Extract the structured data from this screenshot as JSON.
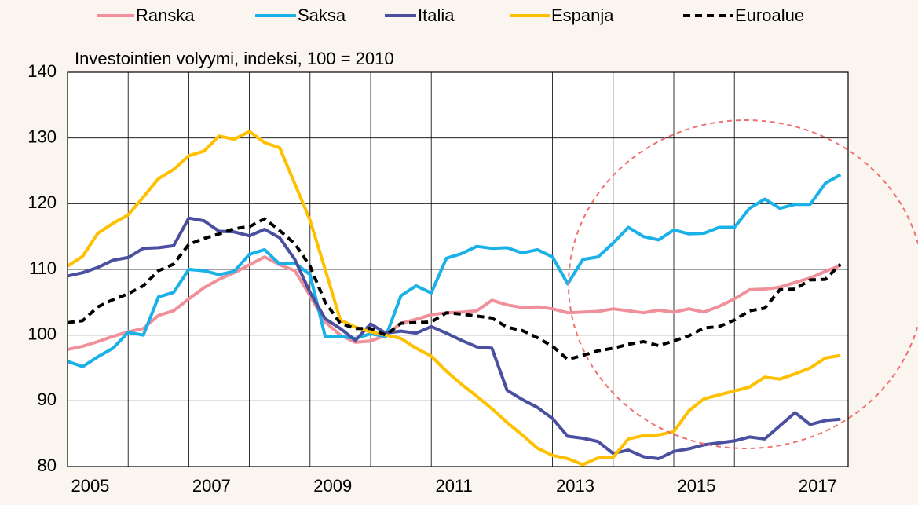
{
  "chart_data": {
    "type": "line",
    "subtitle": "Investointien volyymi, indeksi, 100 = 2010",
    "categories": [
      null,
      "2005",
      null,
      null,
      null,
      null,
      null,
      null,
      null,
      "2007",
      null,
      null,
      null,
      null,
      null,
      null,
      null,
      "2009",
      null,
      null,
      null,
      null,
      null,
      null,
      null,
      "2011",
      null,
      null,
      null,
      null,
      null,
      null,
      null,
      "2013",
      null,
      null,
      null,
      null,
      null,
      null,
      null,
      "2015",
      null,
      null,
      null,
      null,
      null,
      null,
      null,
      "2017",
      null,
      null
    ],
    "series": [
      {
        "name": "Ranska",
        "color": "#f0909a",
        "values": [
          97.8,
          98.3,
          99,
          99.8,
          100.5,
          101,
          103,
          103.7,
          105.5,
          107.2,
          108.5,
          109.5,
          110.7,
          111.9,
          110.7,
          109.8,
          106,
          102,
          100,
          98.9,
          99.1,
          100,
          101.8,
          102.4,
          103.1,
          103.4,
          103.5,
          103.7,
          105.3,
          104.6,
          104.2,
          104.3,
          104,
          103.4,
          103.5,
          103.6,
          104,
          103.7,
          103.4,
          103.8,
          103.5,
          104,
          103.5,
          104.4,
          105.5,
          106.9,
          107,
          107.3,
          108,
          108.7,
          109.7,
          110.6
        ]
      },
      {
        "name": "Saksa",
        "color": "#1ab0e8",
        "values": [
          96,
          95.2,
          96.7,
          98,
          100.4,
          100,
          105.8,
          106.5,
          110,
          109.8,
          109.2,
          109.7,
          112.3,
          113,
          110.8,
          111,
          109.2,
          99.8,
          99.8,
          99.5,
          100.2,
          99.8,
          106,
          107.5,
          106.4,
          111.7,
          112.4,
          113.5,
          113.2,
          113.3,
          112.5,
          113,
          111.9,
          107.8,
          111.5,
          111.9,
          114,
          116.4,
          115,
          114.5,
          116,
          115.4,
          115.5,
          116.4,
          116.4,
          119.3,
          120.7,
          119.3,
          119.9,
          119.9,
          123.1,
          124.4
        ]
      },
      {
        "name": "Italia",
        "color": "#4a4fa0",
        "values": [
          109,
          109.5,
          110.3,
          111.4,
          111.8,
          113.2,
          113.3,
          113.6,
          117.8,
          117.4,
          115.8,
          115.7,
          115.1,
          116.1,
          114.8,
          111.5,
          106.5,
          102.5,
          101,
          99.2,
          101.7,
          100.3,
          100.6,
          100.3,
          101.3,
          100.3,
          99.2,
          98.2,
          98,
          91.6,
          90.2,
          89,
          87.3,
          84.6,
          84.3,
          83.8,
          82,
          82.5,
          81.5,
          81.2,
          82.3,
          82.7,
          83.3,
          83.6,
          83.9,
          84.5,
          84.2,
          86.2,
          88.2,
          86.4,
          87,
          87.2
        ]
      },
      {
        "name": "Espanja",
        "color": "#ffc000",
        "values": [
          110.5,
          112,
          115.5,
          117,
          118.3,
          121,
          123.8,
          125.2,
          127.3,
          128,
          130.3,
          129.8,
          131,
          129.3,
          128.5,
          123,
          117.5,
          110,
          102.3,
          101.2,
          100.5,
          100,
          99.5,
          98,
          96.8,
          94.5,
          92.5,
          90.7,
          88.8,
          86.7,
          84.8,
          82.8,
          81.7,
          81.2,
          80.3,
          81.3,
          81.4,
          84.2,
          84.7,
          84.8,
          85.3,
          88.5,
          90.3,
          90.9,
          91.5,
          92.1,
          93.6,
          93.3,
          94.1,
          95,
          96.5,
          96.9
        ]
      },
      {
        "name": "Euroalue",
        "color": "#000000",
        "dashed": true,
        "values": [
          101.9,
          102.2,
          104.3,
          105.4,
          106.3,
          107.5,
          109.8,
          110.8,
          113.8,
          114.7,
          115.4,
          116.2,
          116.5,
          117.7,
          115.9,
          113.9,
          110.5,
          105,
          101.8,
          101,
          101,
          100,
          101.8,
          101.9,
          102,
          103.4,
          103.2,
          102.9,
          102.6,
          101.2,
          100.7,
          99.6,
          98.3,
          96.3,
          96.9,
          97.6,
          98,
          98.6,
          99,
          98.4,
          99.1,
          99.9,
          101.1,
          101.3,
          102.3,
          103.7,
          104.1,
          106.9,
          107,
          108.4,
          108.5,
          110.8
        ]
      }
    ],
    "ylim": [
      80,
      140
    ],
    "yticks": [
      80,
      90,
      100,
      110,
      120,
      130,
      140
    ],
    "grid": true
  }
}
